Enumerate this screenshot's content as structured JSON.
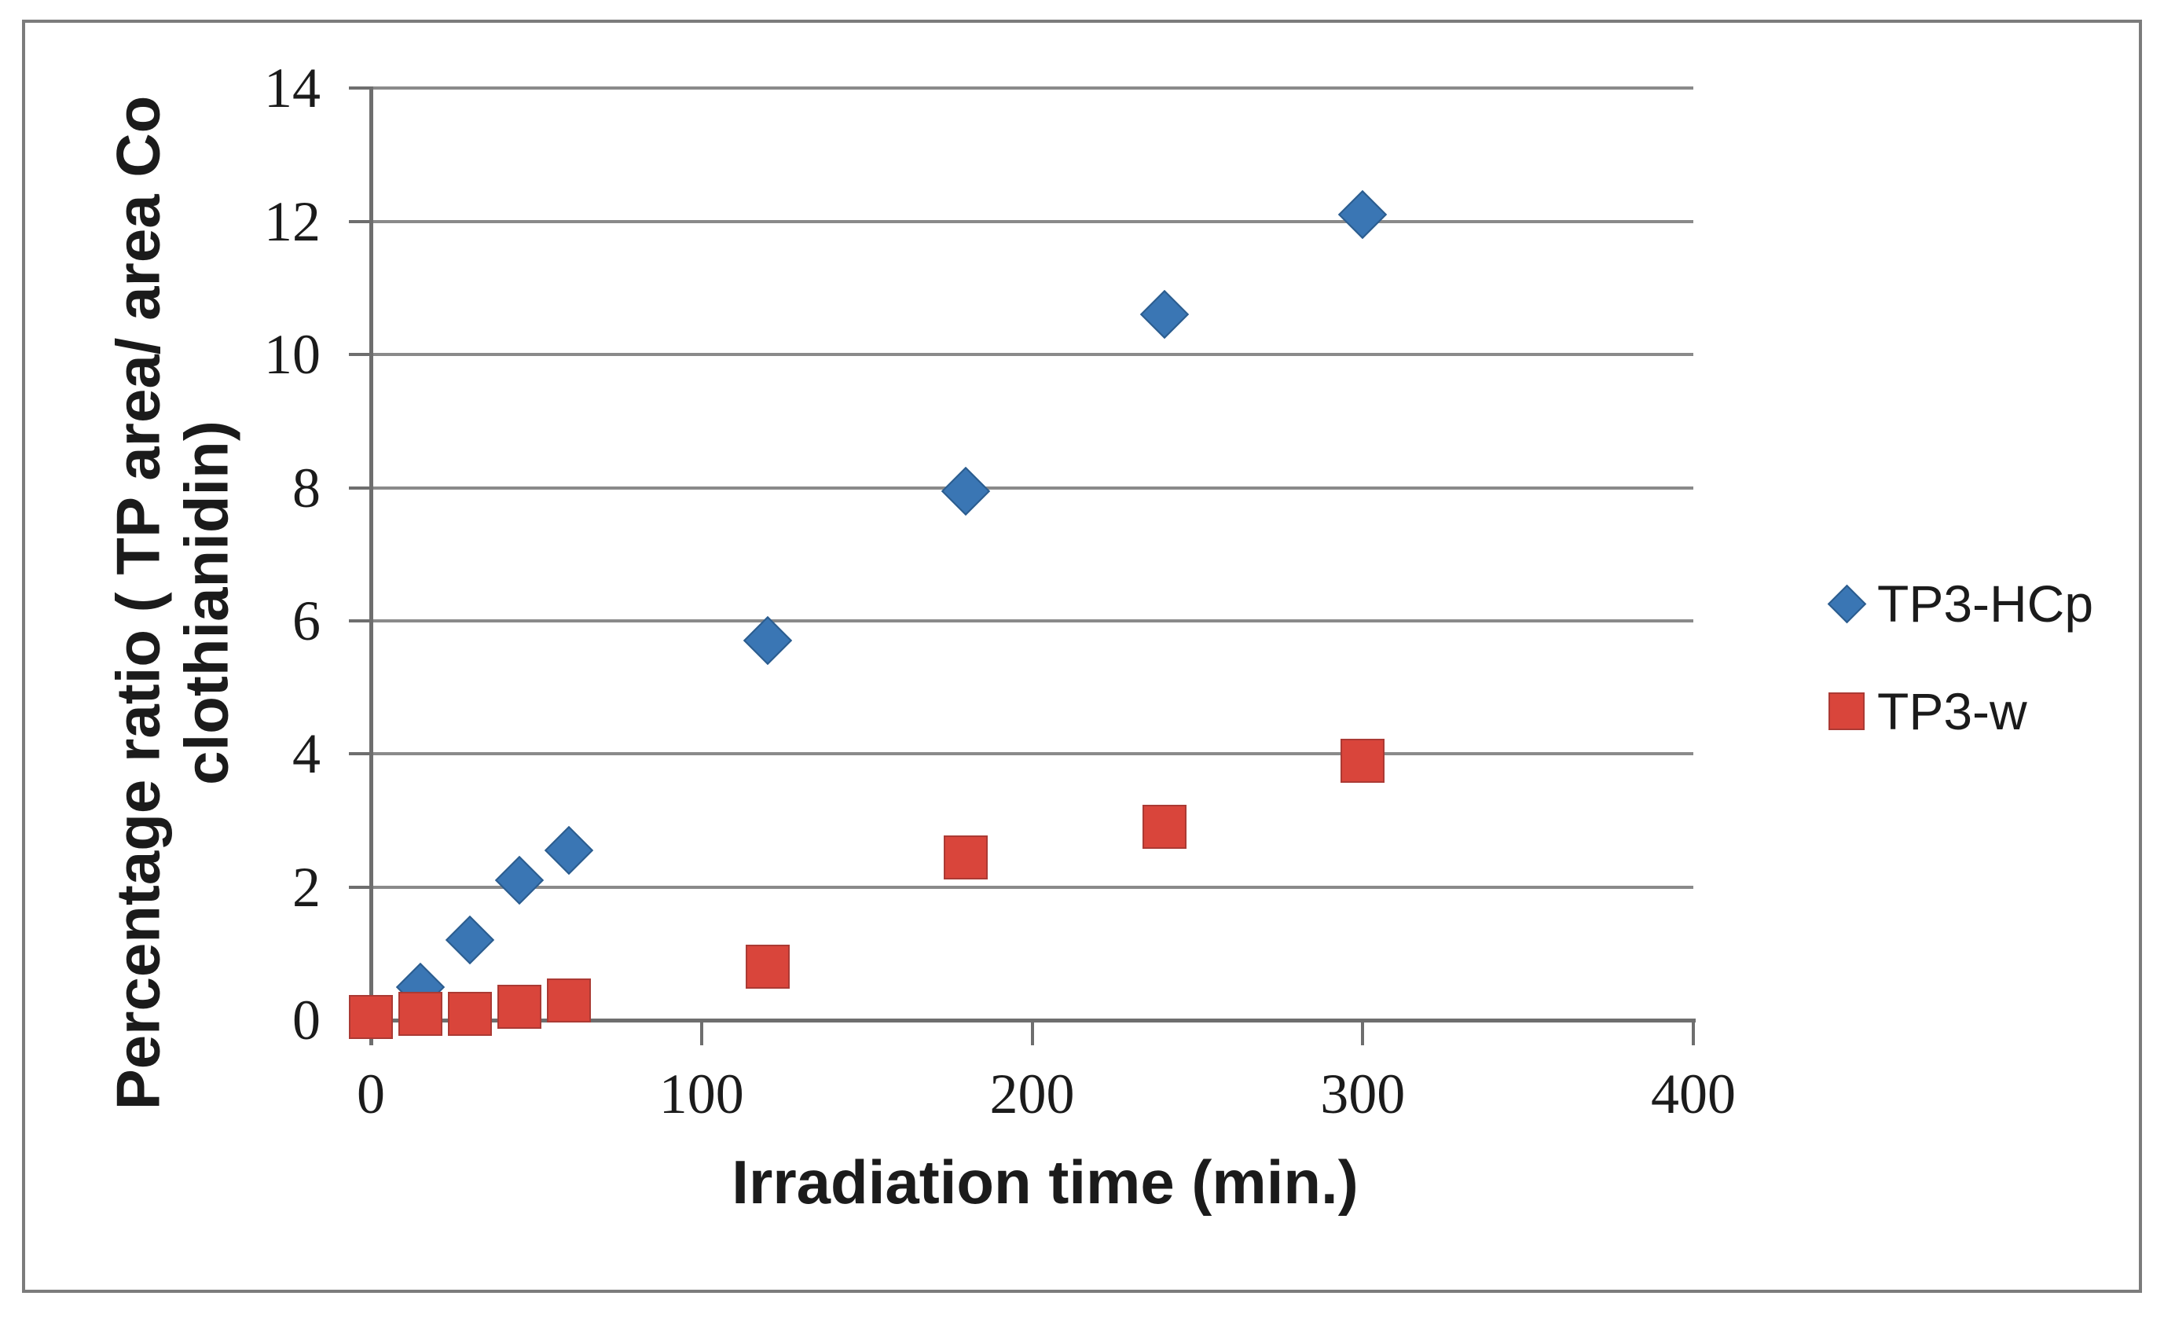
{
  "chart_data": {
    "type": "scatter",
    "title": "",
    "xlabel": "Irradiation time (min.)",
    "ylabel_lines": [
      "Percentage ratio ( TP area/ area Co",
      "clothianidin)"
    ],
    "xlim": [
      0,
      400
    ],
    "ylim": [
      0,
      14
    ],
    "x_ticks": [
      0,
      100,
      200,
      300,
      400
    ],
    "y_ticks": [
      0,
      2,
      4,
      6,
      8,
      10,
      12,
      14
    ],
    "grid": "horizontal",
    "legend_position": "right-middle",
    "series": [
      {
        "name": "TP3-HCp",
        "marker": "diamond",
        "color": "#3a76b4",
        "edge_color": "#2b5c8e",
        "points": [
          [
            15,
            0.5
          ],
          [
            30,
            1.2
          ],
          [
            45,
            2.1
          ],
          [
            60,
            2.55
          ],
          [
            120,
            5.7
          ],
          [
            180,
            7.95
          ],
          [
            240,
            10.6
          ],
          [
            300,
            12.1
          ]
        ]
      },
      {
        "name": "TP3-w",
        "marker": "square",
        "color": "#d9453b",
        "edge_color": "#ab3a34",
        "points": [
          [
            0,
            0.05
          ],
          [
            15,
            0.1
          ],
          [
            30,
            0.1
          ],
          [
            45,
            0.2
          ],
          [
            60,
            0.3
          ],
          [
            120,
            0.8
          ],
          [
            180,
            2.45
          ],
          [
            240,
            2.9
          ],
          [
            300,
            3.9
          ]
        ]
      }
    ]
  },
  "colors": {
    "gridline": "#8a8a8a",
    "axis": "#6e6e6e",
    "figure_border": "#7c7c7c",
    "text": "#1b1b1b",
    "background": "#ffffff"
  }
}
